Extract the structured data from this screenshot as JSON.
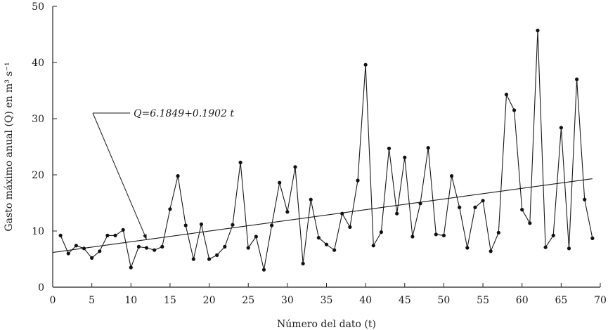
{
  "chart_data": {
    "type": "line",
    "xlabel": "Número del dato (t)",
    "ylabel": "Gasto máximo anual (Q) en m³ s⁻¹",
    "xlim": [
      0,
      70
    ],
    "ylim": [
      0,
      50
    ],
    "xticks": [
      "0",
      "5",
      "10",
      "15",
      "20",
      "25",
      "30",
      "35",
      "40",
      "45",
      "50",
      "55",
      "60",
      "65",
      "70"
    ],
    "yticks": [
      "0",
      "10",
      "20",
      "30",
      "40",
      "50"
    ],
    "grid": false,
    "series": [
      {
        "type": "line+markers",
        "x": [
          1,
          2,
          3,
          4,
          5,
          6,
          7,
          8,
          9,
          10,
          11,
          12,
          13,
          14,
          15,
          16,
          17,
          18,
          19,
          20,
          21,
          22,
          23,
          24,
          25,
          26,
          27,
          28,
          29,
          30,
          31,
          32,
          33,
          34,
          35,
          36,
          37,
          38,
          39,
          40,
          41,
          42,
          43,
          44,
          45,
          46,
          47,
          48,
          49,
          50,
          51,
          52,
          53,
          54,
          55,
          56,
          57,
          58,
          59,
          60,
          61,
          62,
          63,
          64,
          65,
          66,
          67,
          68,
          69
        ],
        "values": [
          9.2,
          6.0,
          7.4,
          6.9,
          5.2,
          6.4,
          9.2,
          9.2,
          10.2,
          3.5,
          7.2,
          7.0,
          6.6,
          7.2,
          13.9,
          19.8,
          11.0,
          5.0,
          11.2,
          5.0,
          5.7,
          7.2,
          11.1,
          22.2,
          7.0,
          9.0,
          3.1,
          11.0,
          18.6,
          13.4,
          21.4,
          4.2,
          15.6,
          8.8,
          7.6,
          6.6,
          13.1,
          10.7,
          19.0,
          39.6,
          7.4,
          9.8,
          24.7,
          13.1,
          23.1,
          9.0,
          14.9,
          24.8,
          9.4,
          9.2,
          19.8,
          14.2,
          7.0,
          14.2,
          15.4,
          6.4,
          9.7,
          34.3,
          31.5,
          13.8,
          11.4,
          45.7,
          7.1,
          9.2,
          28.4,
          6.9,
          37.0,
          15.6,
          8.7
        ]
      },
      {
        "type": "trend",
        "intercept": 6.1849,
        "slope": 0.1902,
        "x_range": [
          0,
          69
        ]
      }
    ],
    "annotation": {
      "text": "Q=6.1849+0.1902 t",
      "arrow_to": [
        12,
        8.5
      ]
    }
  }
}
